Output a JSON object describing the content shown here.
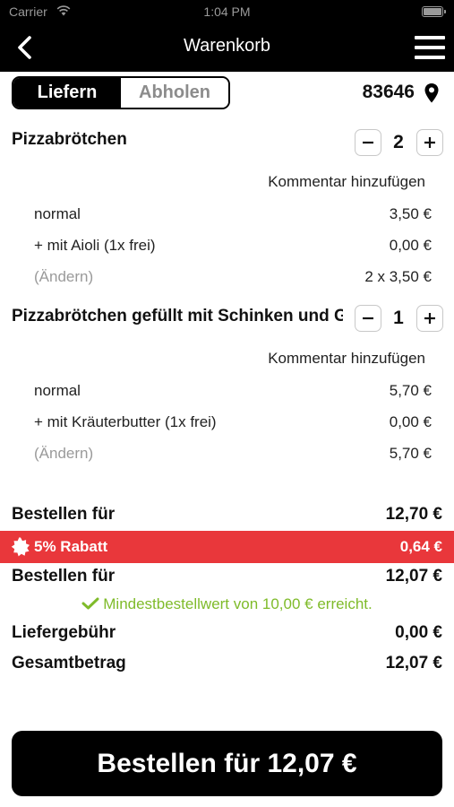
{
  "status_bar": {
    "carrier": "Carrier",
    "time": "1:04 PM"
  },
  "nav": {
    "title": "Warenkorb"
  },
  "delivery_toggle": {
    "options": [
      "Liefern",
      "Abholen"
    ],
    "selected": "Liefern"
  },
  "location": {
    "zip": "83646"
  },
  "items": [
    {
      "title": "Pizzabrötchen",
      "quantity": "2",
      "comment_link": "Kommentar hinzufügen",
      "lines": [
        {
          "label": "normal",
          "price": "3,50 €"
        },
        {
          "label": "+ mit Aioli (1x frei)",
          "price": "0,00 €"
        },
        {
          "label": "(Ändern)",
          "price": "2 x 3,50 €"
        }
      ]
    },
    {
      "title": "Pizzabrötchen gefüllt mit Schinken und Gouda",
      "quantity": "1",
      "comment_link": "Kommentar hinzufügen",
      "lines": [
        {
          "label": "normal",
          "price": "5,70 €"
        },
        {
          "label": "+ mit Kräuterbutter (1x frei)",
          "price": "0,00 €"
        },
        {
          "label": "(Ändern)",
          "price": "5,70 €"
        }
      ]
    }
  ],
  "summary": {
    "subtotal_label": "Bestellen für",
    "subtotal_value": "12,70 €",
    "discount_label": "5% Rabatt",
    "discount_value": "0,64 €",
    "after_discount_label": "Bestellen für",
    "after_discount_value": "12,07 €",
    "min_order_note": "Mindestbestellwert von 10,00 € erreicht.",
    "delivery_fee_label": "Liefergebühr",
    "delivery_fee_value": "0,00 €",
    "total_label": "Gesamtbetrag",
    "total_value": "12,07 €"
  },
  "cta": {
    "label": "Bestellen für 12,07 €"
  },
  "colors": {
    "discount_bg": "#e9373b",
    "success_green": "#7fbb2a",
    "bar_bg": "#000000"
  }
}
